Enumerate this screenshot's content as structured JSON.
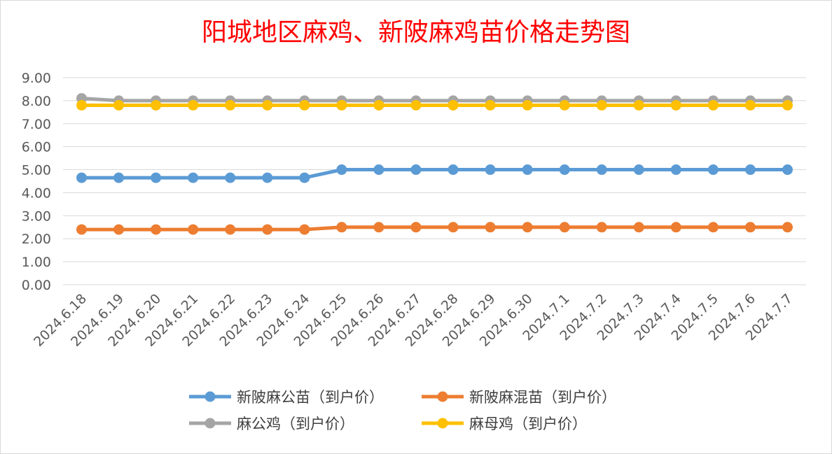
{
  "chart_data": {
    "type": "line",
    "title": "阳城地区麻鸡、新陂麻鸡苗价格走势图",
    "xlabel": "",
    "ylabel": "",
    "ylim": [
      0,
      9
    ],
    "y_ticks": [
      "0.00",
      "1.00",
      "2.00",
      "3.00",
      "4.00",
      "5.00",
      "6.00",
      "7.00",
      "8.00",
      "9.00"
    ],
    "grid": true,
    "legend_position": "bottom",
    "categories": [
      "2024.6.18",
      "2024.6.19",
      "2024.6.20",
      "2024.6.21",
      "2024.6.22",
      "2024.6.23",
      "2024.6.24",
      "2024.6.25",
      "2024.6.26",
      "2024.6.27",
      "2024.6.28",
      "2024.6.29",
      "2024.6.30",
      "2024.7.1",
      "2024.7.2",
      "2024.7.3",
      "2024.7.4",
      "2024.7.5",
      "2024.7.6",
      "2024.7.7"
    ],
    "series": [
      {
        "name": "新陂麻公苗（到户价）",
        "color": "#5b9bd5",
        "values": [
          4.65,
          4.65,
          4.65,
          4.65,
          4.65,
          4.65,
          4.65,
          5.0,
          5.0,
          5.0,
          5.0,
          5.0,
          5.0,
          5.0,
          5.0,
          5.0,
          5.0,
          5.0,
          5.0,
          5.0
        ]
      },
      {
        "name": "新陂麻混苗（到户价）",
        "color": "#ed7d31",
        "values": [
          2.4,
          2.4,
          2.4,
          2.4,
          2.4,
          2.4,
          2.4,
          2.5,
          2.5,
          2.5,
          2.5,
          2.5,
          2.5,
          2.5,
          2.5,
          2.5,
          2.5,
          2.5,
          2.5,
          2.5
        ]
      },
      {
        "name": "麻公鸡（到户价）",
        "color": "#a5a5a5",
        "values": [
          8.1,
          8.0,
          8.0,
          8.0,
          8.0,
          8.0,
          8.0,
          8.0,
          8.0,
          8.0,
          8.0,
          8.0,
          8.0,
          8.0,
          8.0,
          8.0,
          8.0,
          8.0,
          8.0,
          8.0
        ]
      },
      {
        "name": "麻母鸡（到户价）",
        "color": "#ffc000",
        "values": [
          7.8,
          7.8,
          7.8,
          7.8,
          7.8,
          7.8,
          7.8,
          7.8,
          7.8,
          7.8,
          7.8,
          7.8,
          7.8,
          7.8,
          7.8,
          7.8,
          7.8,
          7.8,
          7.8,
          7.8
        ]
      }
    ]
  }
}
